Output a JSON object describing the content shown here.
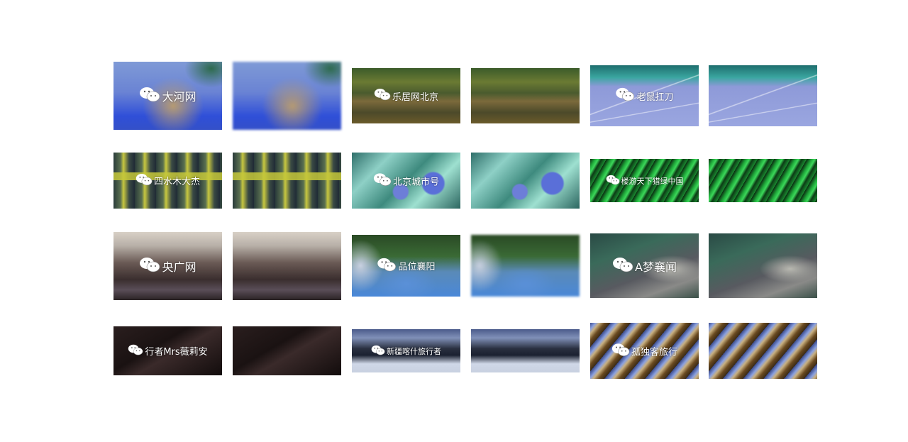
{
  "tiles": [
    {
      "watermark": "大河网",
      "has_watermark_copy": true
    },
    {
      "watermark": "乐居网北京",
      "has_watermark_copy": true
    },
    {
      "watermark": "老鼠扛刀",
      "has_watermark_copy": true
    },
    {
      "watermark": "四水木大杰",
      "has_watermark_copy": true
    },
    {
      "watermark": "北京城市号",
      "has_watermark_copy": true
    },
    {
      "watermark": "楼游天下猎绿中国",
      "has_watermark_copy": true
    },
    {
      "watermark": "央广网",
      "has_watermark_copy": true
    },
    {
      "watermark": "品位襄阳",
      "has_watermark_copy": true
    },
    {
      "watermark": "A梦襄闻",
      "has_watermark_copy": true
    },
    {
      "watermark": "行者Mrs薇莉安",
      "has_watermark_copy": true
    },
    {
      "watermark": "新疆喀什旅行者",
      "has_watermark_copy": true
    },
    {
      "watermark": "孤独客旅行",
      "has_watermark_copy": true
    }
  ],
  "icon": "wechat-icon",
  "colors": {
    "background": "#ffffff",
    "watermark_text": "#ffffff"
  }
}
